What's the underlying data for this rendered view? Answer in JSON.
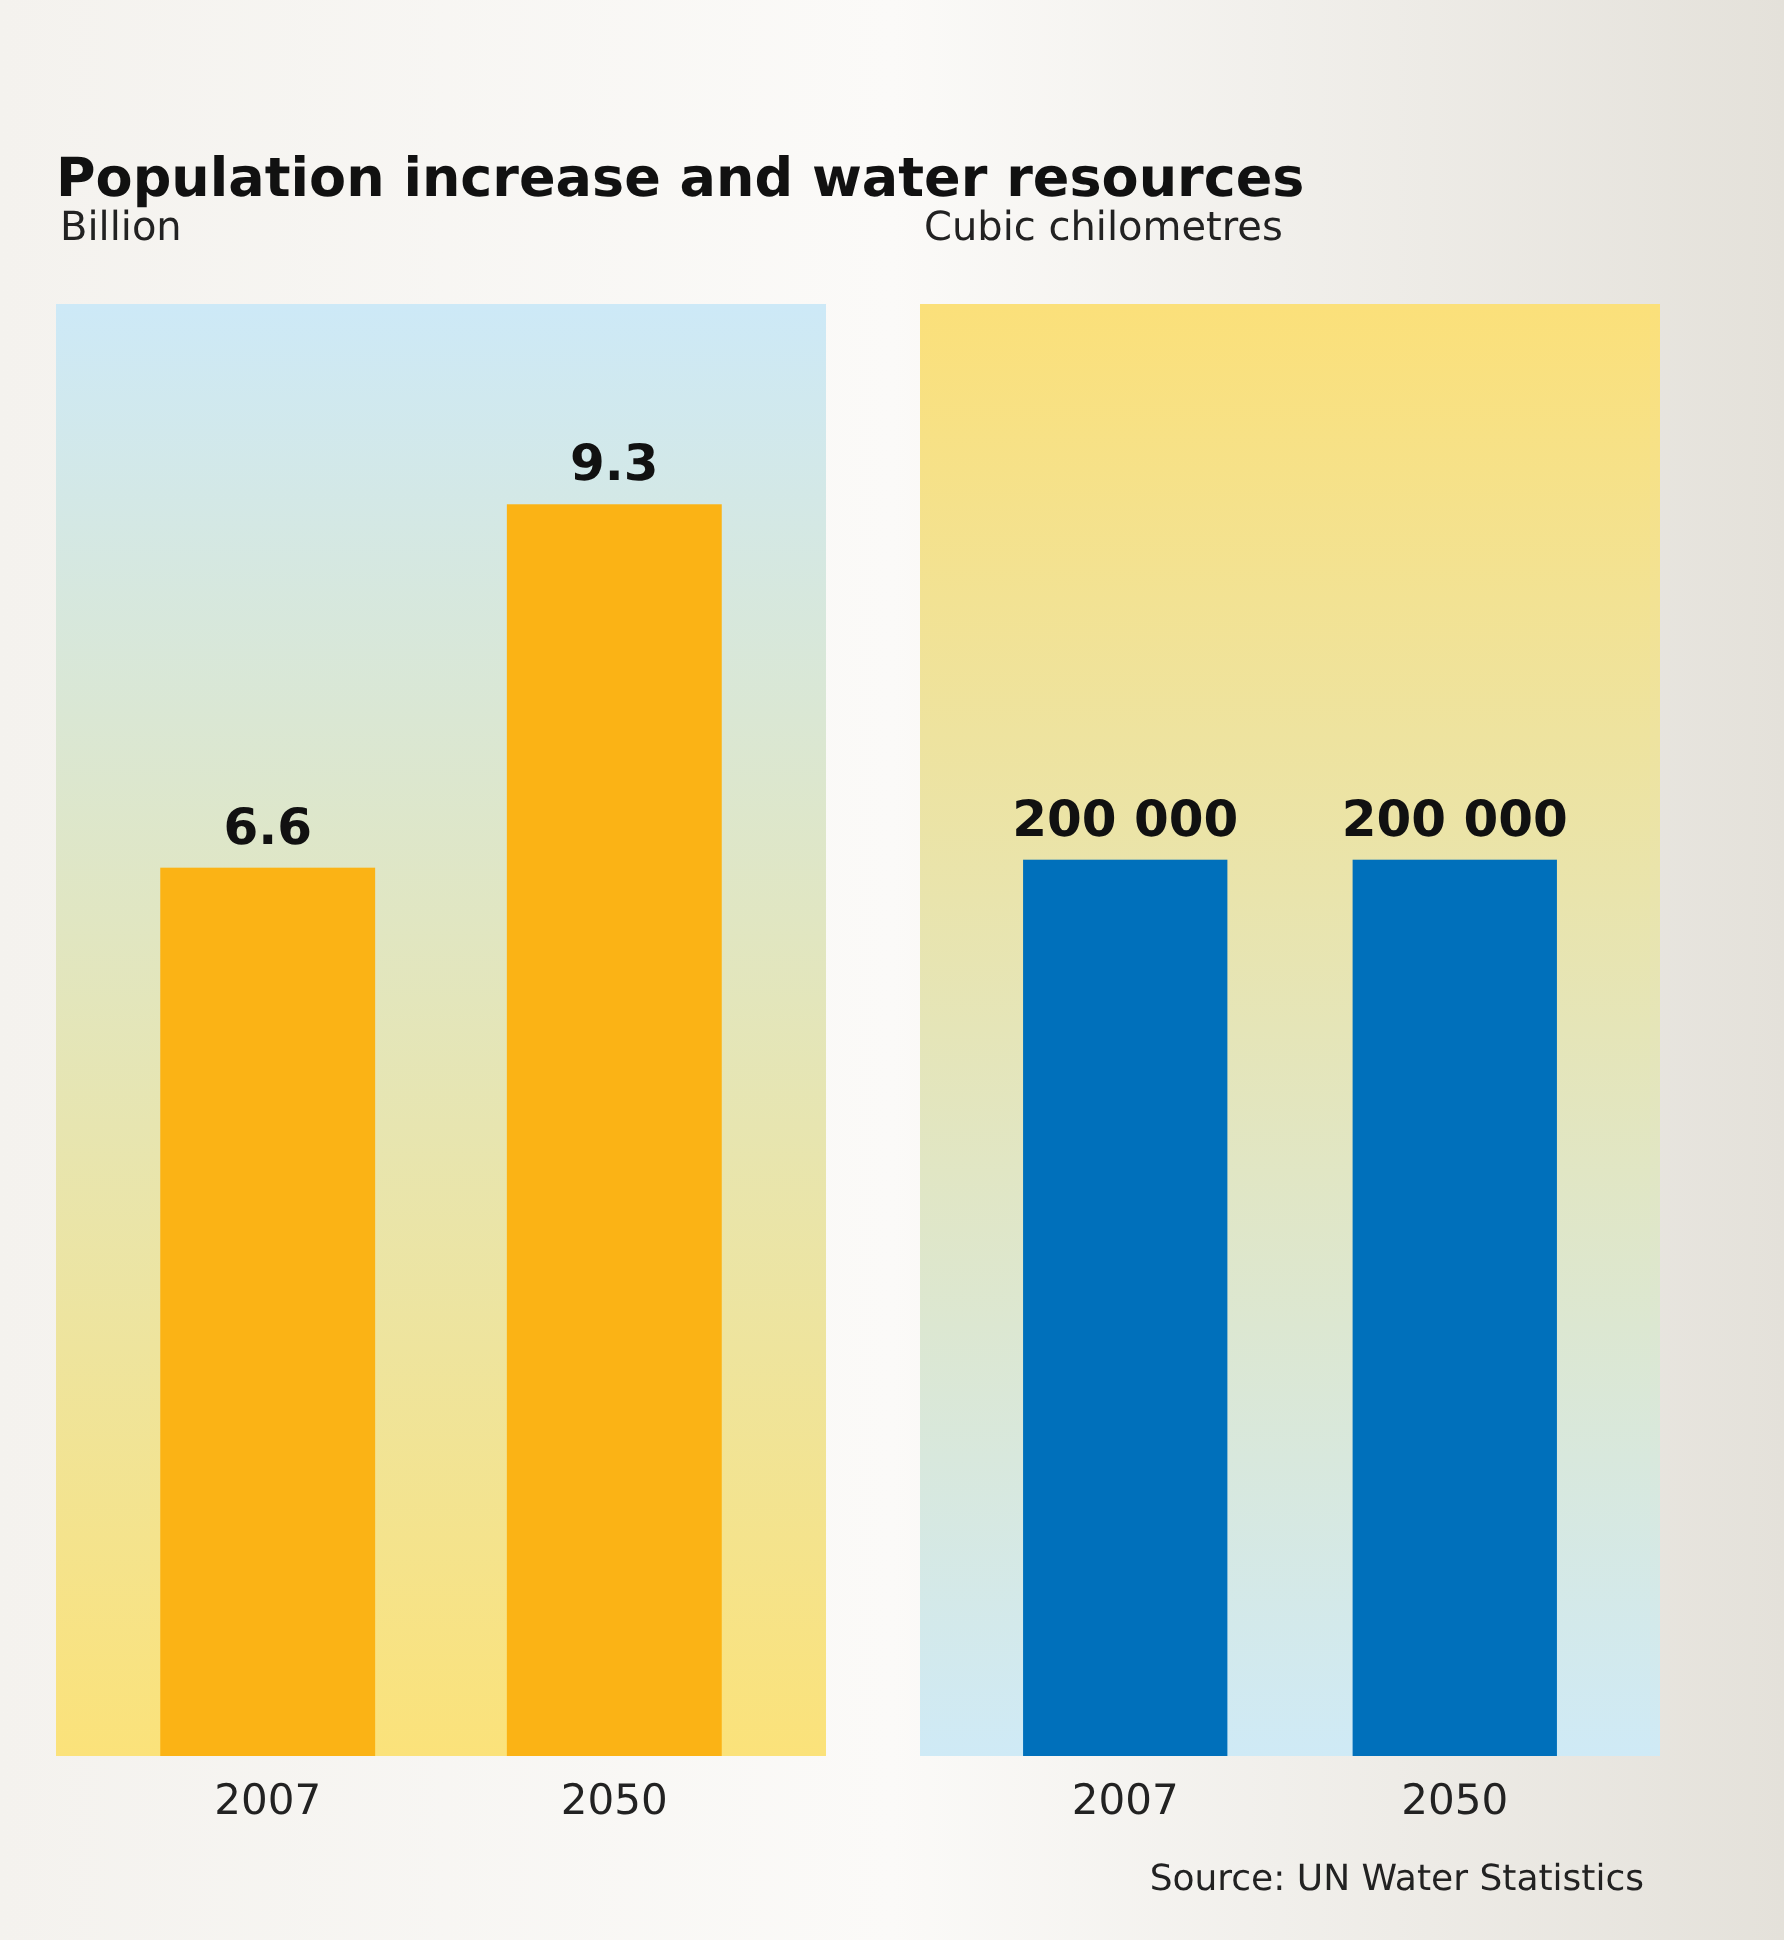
{
  "chart_data": [
    {
      "type": "bar",
      "title": "Population increase and water resources",
      "subtitle": "Billion",
      "categories": [
        "2007",
        "2050"
      ],
      "values": [
        6.6,
        9.3
      ],
      "color": "#fbb315",
      "data_labels": true
    },
    {
      "type": "bar",
      "subtitle": "Cubic chilometres",
      "categories": [
        "2007",
        "2050"
      ],
      "values": [
        200000,
        200000
      ],
      "color": "#0070bb",
      "value_labels": [
        "200 000",
        "200 000"
      ],
      "annotations": [
        "Source: UN Water Statistics"
      ]
    }
  ]
}
